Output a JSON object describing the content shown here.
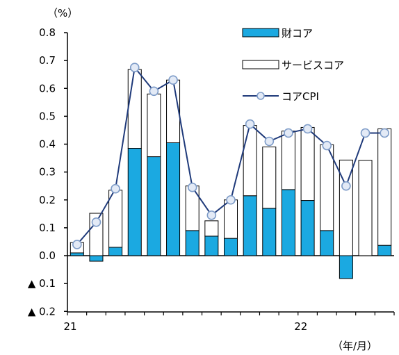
{
  "chart_data": {
    "type": "bar",
    "y_unit": "（%）",
    "x_unit": "（年/月）",
    "ylim": [
      -0.2,
      0.8
    ],
    "y_ticks": [
      {
        "value": 0.8,
        "label": "0.8"
      },
      {
        "value": 0.7,
        "label": "0.7"
      },
      {
        "value": 0.6,
        "label": "0.6"
      },
      {
        "value": 0.5,
        "label": "0.5"
      },
      {
        "value": 0.4,
        "label": "0.4"
      },
      {
        "value": 0.3,
        "label": "0.3"
      },
      {
        "value": 0.2,
        "label": "0.2"
      },
      {
        "value": 0.1,
        "label": "0.1"
      },
      {
        "value": 0.0,
        "label": "0.0"
      },
      {
        "value": -0.1,
        "label": "▲ 0.1"
      },
      {
        "value": -0.2,
        "label": "▲ 0.2"
      }
    ],
    "x_ticks": [
      {
        "index": 0,
        "label": "21"
      },
      {
        "index": 12,
        "label": "22"
      }
    ],
    "months": [
      "2021-01",
      "2021-02",
      "2021-03",
      "2021-04",
      "2021-05",
      "2021-06",
      "2021-07",
      "2021-08",
      "2021-09",
      "2021-10",
      "2021-11",
      "2021-12",
      "2022-01",
      "2022-02",
      "2022-03",
      "2022-04",
      "2022-05"
    ],
    "series": [
      {
        "name": "財コア",
        "kind": "stacked-bar",
        "color": "#1BA9E1",
        "values": [
          0.01,
          -0.02,
          0.03,
          0.385,
          0.355,
          0.405,
          0.09,
          0.07,
          0.062,
          0.215,
          0.17,
          0.237,
          0.198,
          0.09,
          -0.082,
          0.0,
          0.037
        ]
      },
      {
        "name": "サービスコア",
        "kind": "stacked-bar",
        "color": "#ffffff",
        "values": [
          0.037,
          0.152,
          0.205,
          0.283,
          0.225,
          0.225,
          0.16,
          0.055,
          0.138,
          0.252,
          0.22,
          0.21,
          0.262,
          0.308,
          0.343,
          0.342,
          0.418
        ]
      },
      {
        "name": "コアCPI",
        "kind": "line",
        "color": "#1F3A7A",
        "values": [
          0.04,
          0.12,
          0.24,
          0.675,
          0.59,
          0.63,
          0.245,
          0.145,
          0.2,
          0.472,
          0.41,
          0.44,
          0.455,
          0.395,
          0.25,
          0.44,
          0.44
        ]
      }
    ],
    "legend_position": "top-right"
  }
}
